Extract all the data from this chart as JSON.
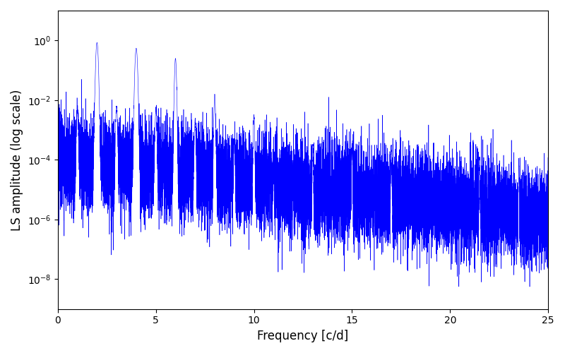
{
  "title": "",
  "xlabel": "Frequency [c/d]",
  "ylabel": "LS amplitude (log scale)",
  "xlim": [
    0,
    25
  ],
  "ylim": [
    1e-09,
    10.0
  ],
  "line_color": "#0000ff",
  "line_width": 0.4,
  "background_color": "#ffffff",
  "freq_max": 25.0,
  "n_points": 15000,
  "base_level": 0.0001,
  "noise_floor": 5e-10,
  "envelope_decay": 0.18,
  "peak_frequencies": [
    2.0,
    4.0,
    6.0,
    8.0,
    10.0,
    13.0,
    15.0,
    17.0,
    21.5,
    23.5
  ],
  "peak_amplitudes": [
    0.85,
    0.55,
    0.25,
    0.015,
    0.003,
    0.0003,
    0.0003,
    0.0003,
    0.0001,
    7e-05
  ],
  "peak_widths": [
    0.04,
    0.04,
    0.03,
    0.025,
    0.02,
    0.015,
    0.015,
    0.015,
    0.012,
    0.012
  ],
  "noise_sigma": 1.8,
  "yticks": [
    1e-08,
    1e-06,
    0.0001,
    0.01,
    1.0
  ],
  "xticks": [
    0,
    5,
    10,
    15,
    20,
    25
  ]
}
